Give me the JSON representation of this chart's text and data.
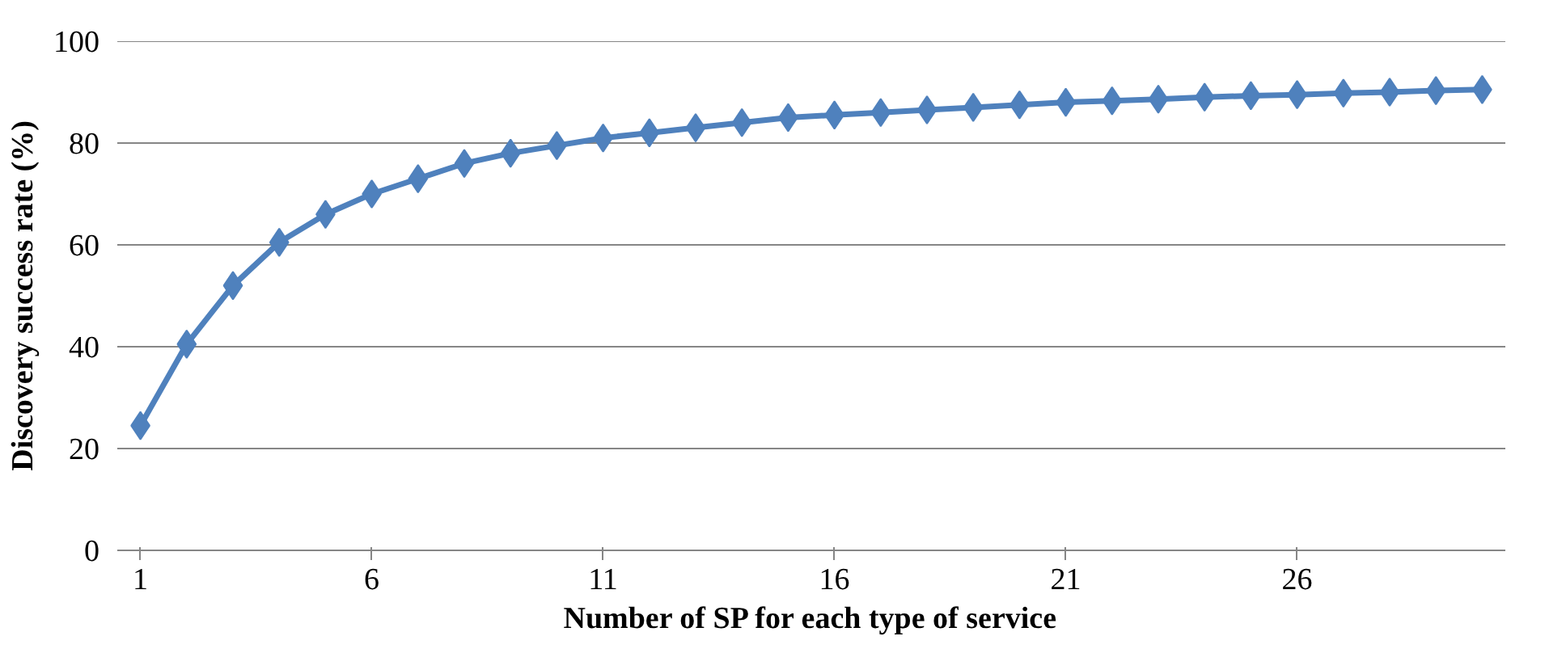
{
  "chart_data": {
    "type": "line",
    "xlabel": "Number of SP for each type of service",
    "ylabel": "Discovery success rate (%)",
    "x": [
      1,
      2,
      3,
      4,
      5,
      6,
      7,
      8,
      9,
      10,
      11,
      12,
      13,
      14,
      15,
      16,
      17,
      18,
      19,
      20,
      21,
      22,
      23,
      24,
      25,
      26,
      27,
      28,
      29,
      30
    ],
    "series": [
      {
        "color": "#4f81bd",
        "values": [
          24.5,
          40.5,
          52,
          60.5,
          66,
          70,
          73,
          76,
          78,
          79.5,
          81,
          82,
          83,
          84,
          85,
          85.5,
          86,
          86.5,
          87,
          87.5,
          88,
          88.3,
          88.6,
          89,
          89.3,
          89.5,
          89.8,
          90,
          90.3,
          90.5
        ]
      }
    ],
    "xlim": [
      0.5,
      30.5
    ],
    "xticks": [
      1,
      6,
      11,
      16,
      21,
      26
    ],
    "ylim": [
      0,
      100
    ],
    "yticks": [
      0,
      20,
      40,
      60,
      80,
      100
    ],
    "grid": "y",
    "marker": "diamond",
    "line_style": "solid"
  }
}
